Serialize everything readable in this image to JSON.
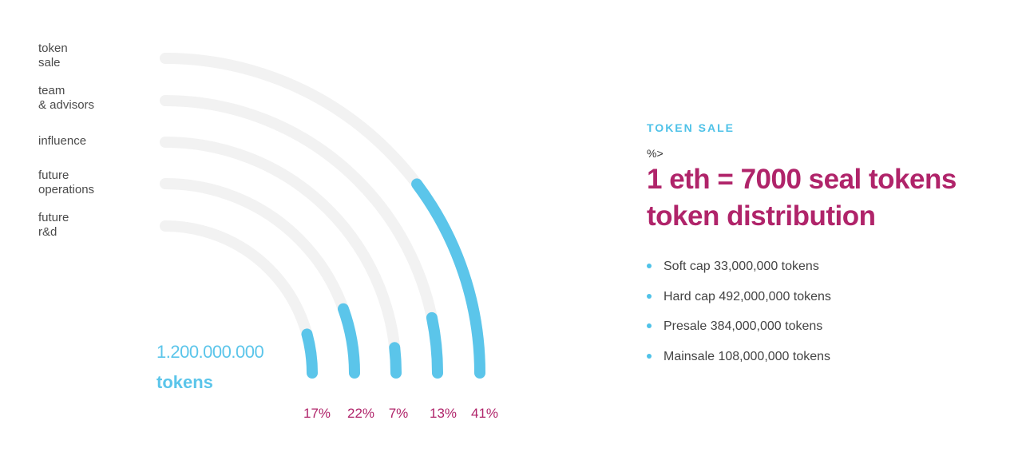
{
  "chart_data": {
    "type": "radial-bar",
    "categories": [
      "token sale",
      "team & advisors",
      "influence",
      "future operations",
      "future r&d"
    ],
    "category_labels": [
      "token\nsale",
      "team\n& advisors",
      "influence",
      "future\noperations",
      "future\nr&d"
    ],
    "values": [
      41,
      13,
      7,
      22,
      17
    ],
    "percent_labels": [
      "17%",
      "22%",
      "7%",
      "13%",
      "41%"
    ],
    "total_value": "1.200.000.000",
    "total_unit": "tokens",
    "track_color": "#f2f2f2",
    "bar_color": "#5bc5ea",
    "label_color": "#b0246a"
  },
  "info": {
    "eyebrow": "TOKEN SALE",
    "symbol": "%>",
    "headline_line1": "1 eth = 7000 seal tokens",
    "headline_line2": "token distribution",
    "bullets": [
      "Soft cap 33,000,000 tokens",
      "Hard cap 492,000,000 tokens",
      "Presale 384,000,000 tokens",
      "Mainsale 108,000,000 tokens"
    ],
    "bullet_color": "#4fc2e8"
  }
}
